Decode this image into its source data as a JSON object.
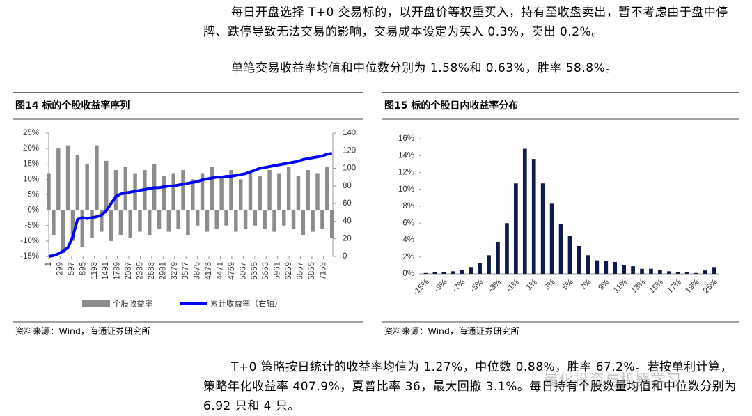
{
  "paragraphs": [
    "每日开盘选择 T+0 交易标的，以开盘价等权重买入，持有至收盘卖出，暂不考虑由于盘中停牌、跌停导致无法交易的影响，交易成本设定为买入 0.3%，卖出 0.2%。",
    "单笔交易收益率均值和中位数分别为 1.58%和 0.63%，胜率 58.8%。",
    "T+0 策略按日统计的收益率均值为 1.27%，中位数 0.88%，胜率 67.2%。若按单利计算，策略年化收益率 407.9%，夏普比率 36，最大回撤 3.1%。每日持有个股数量均值和中位数分别为 6.92 只和 4 只。"
  ],
  "watermark": "量化投资与机器学习",
  "figures": [
    {
      "title": "图14 标的个股收益率序列",
      "source": "资料来源：Wind，海通证券研究所",
      "chart": {
        "type": "bar-line",
        "x": [
          1,
          126,
          251,
          376,
          501,
          626,
          751,
          876,
          1001,
          1126,
          1251,
          1376,
          1501,
          1626,
          1751,
          1876,
          2001,
          2126,
          2251,
          2376,
          2501,
          2626,
          2751,
          2876,
          3001,
          3126,
          3251,
          3376,
          3501,
          3626,
          3751,
          3876,
          4001,
          4126,
          4251,
          4376,
          4501,
          4626,
          4751,
          4876,
          5001,
          5126,
          5251,
          5376,
          5501,
          5626,
          5751,
          5876,
          6001,
          6126,
          6251,
          6376,
          6501,
          6626,
          6751,
          6876,
          7001,
          7126,
          7251,
          7376
        ],
        "series": [
          {
            "name": "个股收益率",
            "color": "#8c8c8c",
            "kind": "bar",
            "values": [
              12,
              -8,
              20,
              -14,
              21,
              -10,
              18,
              -12,
              15,
              -9,
              21,
              -7,
              16,
              -10,
              13,
              -8,
              14,
              -9,
              12,
              -7,
              13,
              -8,
              15,
              -6,
              11,
              -7,
              12,
              -6,
              13,
              -8,
              10,
              -5,
              12,
              -7,
              14,
              -6,
              11,
              -5,
              13,
              -7,
              10,
              -6,
              12,
              -5,
              11,
              -6,
              13,
              -7,
              12,
              -5,
              14,
              -6,
              11,
              -8,
              13,
              -7,
              12,
              -6,
              14,
              -9
            ]
          },
          {
            "name": "累计收益率（右轴）",
            "color": "#0000ff",
            "kind": "line",
            "axis": "y2",
            "values": [
              0,
              1,
              3,
              6,
              10,
              22,
              42,
              44,
              43,
              44,
              45,
              47,
              52,
              60,
              68,
              71,
              72,
              73,
              74,
              75,
              76,
              77,
              78,
              78,
              79,
              80,
              80,
              81,
              82,
              83,
              84,
              85,
              87,
              88,
              89,
              90,
              90,
              91,
              91,
              92,
              93,
              94,
              96,
              98,
              100,
              101,
              102,
              103,
              104,
              105,
              106,
              107,
              108,
              110,
              111,
              112,
              113,
              114,
              116,
              117
            ]
          }
        ],
        "xlim": [
          1,
          7400
        ],
        "xticks": [
          1,
          299,
          597,
          895,
          1193,
          1491,
          1789,
          2087,
          2385,
          2683,
          2981,
          3279,
          3577,
          3875,
          4173,
          4471,
          4769,
          5067,
          5365,
          5663,
          5961,
          6259,
          6557,
          6855,
          7153
        ],
        "ylim": [
          -15,
          25
        ],
        "yticks": [
          {
            "value": -15,
            "label": "-15%"
          },
          {
            "value": -10,
            "label": "-10%"
          },
          {
            "value": -5,
            "label": "-5%"
          },
          {
            "value": 0,
            "label": "0%"
          },
          {
            "value": 5,
            "label": "5%"
          },
          {
            "value": 10,
            "label": "10%"
          },
          {
            "value": 15,
            "label": "15%"
          },
          {
            "value": 20,
            "label": "20%"
          },
          {
            "value": 25,
            "label": "25%"
          }
        ],
        "y2lim": [
          0,
          140
        ],
        "y2ticks": [
          0,
          20,
          40,
          60,
          80,
          100,
          120,
          140
        ],
        "legend": "bottom"
      }
    },
    {
      "title": "图15 标的个股日内收益率分布",
      "source": "资料来源：Wind，海通证券研究所",
      "chart": {
        "type": "bar",
        "color": "#0d1a4a",
        "categories": [
          "-15%",
          null,
          "-9%",
          null,
          "-7%",
          null,
          "-5%",
          null,
          "-3%",
          null,
          "-1%",
          null,
          "1%",
          null,
          "3%",
          null,
          "5%",
          null,
          "7%",
          null,
          "9%",
          null,
          "11%",
          null,
          "13%",
          null,
          "15%",
          null,
          "17%",
          null,
          "19%",
          null,
          "25%"
        ],
        "values": [
          0.1,
          0.2,
          0.2,
          0.3,
          0.5,
          0.8,
          1.3,
          2.2,
          3.8,
          6.0,
          10.7,
          14.8,
          13.6,
          10.7,
          8.3,
          5.9,
          4.5,
          3.3,
          2.2,
          1.6,
          1.5,
          1.4,
          1.0,
          0.9,
          0.6,
          0.6,
          0.5,
          0.3,
          0.2,
          0.2,
          0.1,
          0.4,
          0.8
        ],
        "ylim": [
          0,
          16
        ],
        "yticks": [
          {
            "value": 0,
            "label": "0%"
          },
          {
            "value": 2,
            "label": "2%"
          },
          {
            "value": 4,
            "label": "4%"
          },
          {
            "value": 6,
            "label": "6%"
          },
          {
            "value": 8,
            "label": "8%"
          },
          {
            "value": 10,
            "label": "10%"
          },
          {
            "value": 12,
            "label": "12%"
          },
          {
            "value": 14,
            "label": "14%"
          },
          {
            "value": 16,
            "label": "16%"
          }
        ]
      }
    }
  ]
}
